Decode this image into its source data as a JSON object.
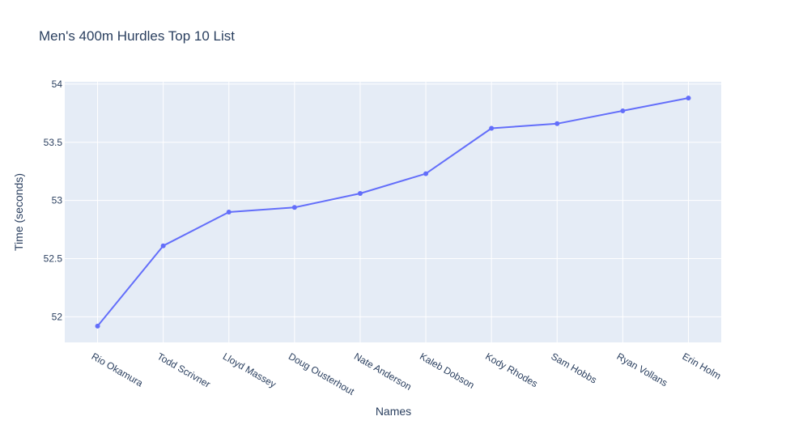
{
  "chart_data": {
    "type": "line",
    "title": "Men's 400m Hurdles Top 10 List",
    "xlabel": "Names",
    "ylabel": "Time (seconds)",
    "categories": [
      "Rio Okamura",
      "Todd Scrivner",
      "Lloyd Massey",
      "Doug Ousterhout",
      "Nate Anderson",
      "Kaleb Dobson",
      "Kody Rhodes",
      "Sam Hobbs",
      "Ryan Vollans",
      "Erin Holm"
    ],
    "values": [
      51.92,
      52.61,
      52.9,
      52.94,
      53.06,
      53.23,
      53.62,
      53.66,
      53.77,
      53.88
    ],
    "ylim": [
      51.78,
      54.02
    ],
    "yticks": [
      52,
      52.5,
      53,
      53.5,
      54
    ],
    "ytick_labels": [
      "52",
      "52.5",
      "53",
      "53.5",
      "54"
    ],
    "grid": true,
    "colors": {
      "line": "#636efa",
      "plot_bg": "#e5ecf6",
      "grid": "#ffffff",
      "text": "#2a3f5f"
    }
  }
}
